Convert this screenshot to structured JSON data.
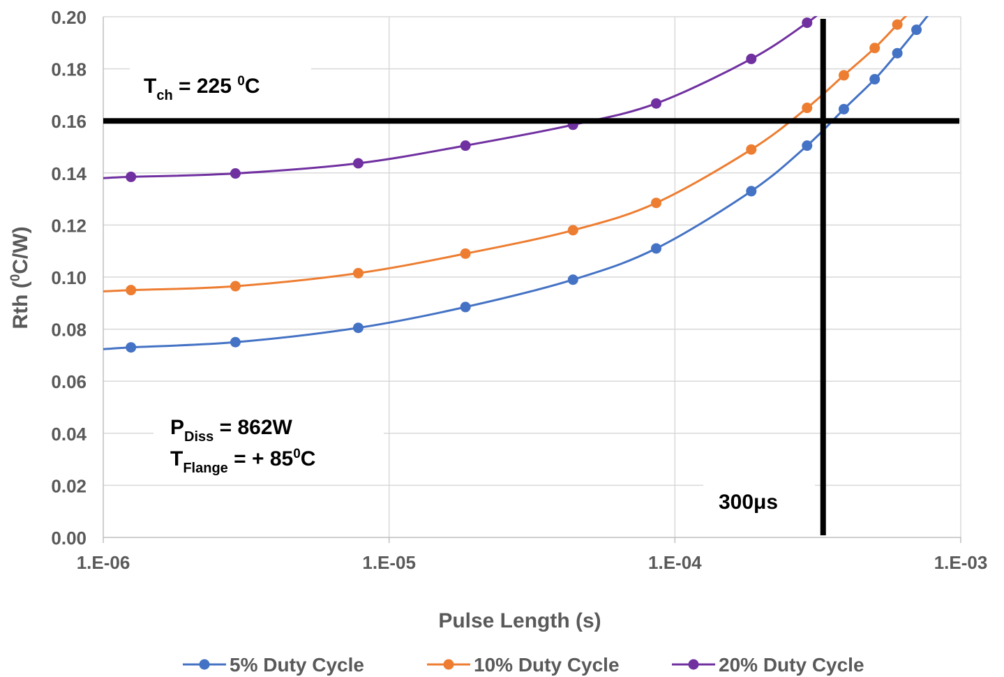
{
  "chart_data": {
    "type": "line",
    "x_scale": "log",
    "xlim": [
      1e-06,
      0.001
    ],
    "ylim": [
      0,
      0.2
    ],
    "xlabel": "Pulse Length (s)",
    "ylabel": "Rth (0C/W)",
    "ylabel_parts": {
      "pre": "Rth (",
      "sup": "0",
      "post": "C/W)"
    },
    "grid": true,
    "legend_position": "bottom",
    "x_ticks": [
      {
        "value": 1e-06,
        "label": "1.E-06"
      },
      {
        "value": 1e-05,
        "label": "1.E-05"
      },
      {
        "value": 0.0001,
        "label": "1.E-04"
      },
      {
        "value": 0.001,
        "label": "1.E-03"
      }
    ],
    "y_ticks": [
      {
        "value": 0.0,
        "label": "0.00"
      },
      {
        "value": 0.02,
        "label": "0.02"
      },
      {
        "value": 0.04,
        "label": "0.04"
      },
      {
        "value": 0.06,
        "label": "0.06"
      },
      {
        "value": 0.08,
        "label": "0.08"
      },
      {
        "value": 0.1,
        "label": "0.10"
      },
      {
        "value": 0.12,
        "label": "0.12"
      },
      {
        "value": 0.14,
        "label": "0.14"
      },
      {
        "value": 0.16,
        "label": "0.16"
      },
      {
        "value": 0.18,
        "label": "0.18"
      },
      {
        "value": 0.2,
        "label": "0.20"
      }
    ],
    "series": [
      {
        "name": "5% Duty Cycle",
        "color": "#4472C4",
        "points": [
          [
            1.25e-06,
            0.073
          ],
          [
            2.9e-06,
            0.075
          ],
          [
            7.8e-06,
            0.0805
          ],
          [
            1.85e-05,
            0.0885
          ],
          [
            4.4e-05,
            0.099
          ],
          [
            8.6e-05,
            0.111
          ],
          [
            0.000185,
            0.133
          ],
          [
            0.00029,
            0.1505
          ],
          [
            0.00039,
            0.1645
          ],
          [
            0.0005,
            0.176
          ],
          [
            0.0006,
            0.186
          ],
          [
            0.0007,
            0.195
          ]
        ],
        "extend_left": 0.0723,
        "extend_right": [
          0.00078,
          0.2015
        ]
      },
      {
        "name": "10% Duty Cycle",
        "color": "#ED7D31",
        "points": [
          [
            1.25e-06,
            0.095
          ],
          [
            2.9e-06,
            0.0965
          ],
          [
            7.8e-06,
            0.1015
          ],
          [
            1.85e-05,
            0.109
          ],
          [
            4.4e-05,
            0.118
          ],
          [
            8.6e-05,
            0.1285
          ],
          [
            0.000185,
            0.149
          ],
          [
            0.00029,
            0.165
          ],
          [
            0.00039,
            0.1775
          ],
          [
            0.0005,
            0.188
          ],
          [
            0.0006,
            0.197
          ]
        ],
        "extend_left": 0.0945,
        "extend_right": [
          0.00066,
          0.2015
        ]
      },
      {
        "name": "20% Duty Cycle",
        "color": "#7030A0",
        "points": [
          [
            1.25e-06,
            0.1385
          ],
          [
            2.9e-06,
            0.1398
          ],
          [
            7.8e-06,
            0.1437
          ],
          [
            1.85e-05,
            0.1505
          ],
          [
            4.4e-05,
            0.1585
          ],
          [
            8.6e-05,
            0.1667
          ],
          [
            0.000185,
            0.1838
          ],
          [
            0.00029,
            0.1977
          ]
        ],
        "extend_left": 0.138,
        "extend_right": [
          0.00032,
          0.2015
        ]
      }
    ],
    "reference_lines": [
      {
        "orientation": "horizontal",
        "value": 0.16,
        "color": "#000000"
      },
      {
        "orientation": "vertical",
        "value": 0.00033,
        "color": "#000000"
      }
    ],
    "annotations": {
      "tch": {
        "main": "T",
        "sub": "ch",
        "rest": " = 225 ",
        "sup": "0",
        "tail": "C"
      },
      "pdiss": {
        "main": "P",
        "sub": "Diss",
        "rest": " = 862W"
      },
      "tflange": {
        "main": "T",
        "sub": "Flange",
        "rest": " = + 85",
        "sup": "0",
        "tail": "C"
      },
      "pulse": "300μs"
    }
  }
}
